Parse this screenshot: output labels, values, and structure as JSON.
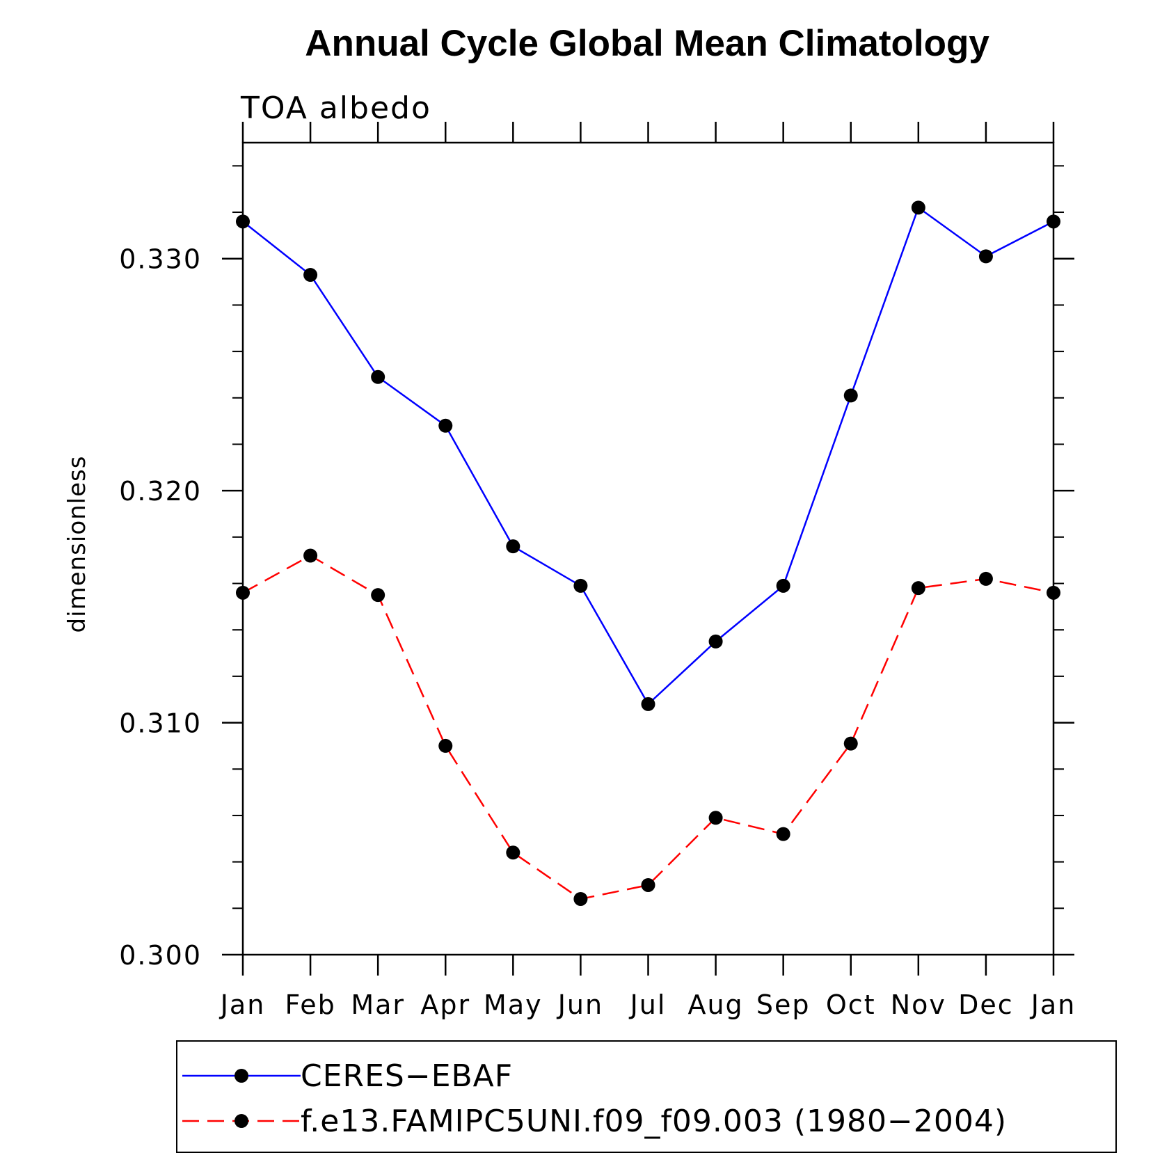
{
  "chart_data": {
    "type": "line",
    "title": "Annual Cycle Global Mean Climatology",
    "subtitle": "TOA  albedo",
    "xlabel": "",
    "ylabel": "dimensionless",
    "categories": [
      "Jan",
      "Feb",
      "Mar",
      "Apr",
      "May",
      "Jun",
      "Jul",
      "Aug",
      "Sep",
      "Oct",
      "Nov",
      "Dec",
      "Jan"
    ],
    "ylim": [
      0.3,
      0.335
    ],
    "yticks": [
      "0.300",
      "0.310",
      "0.320",
      "0.330"
    ],
    "ytick_values": [
      0.3,
      0.31,
      0.32,
      0.33
    ],
    "grid": false,
    "legend_position": "bottom",
    "series": [
      {
        "name": "CERES−EBAF",
        "color": "#0000ff",
        "dash": "solid",
        "values": [
          0.3316,
          0.3293,
          0.3249,
          0.3228,
          0.3176,
          0.3159,
          0.3108,
          0.3135,
          0.3159,
          0.3241,
          0.3322,
          0.3301,
          0.3316
        ]
      },
      {
        "name": "f.e13.FAMIPC5UNI.f09_f09.003 (1980−2004)",
        "color": "#ff0000",
        "dash": "dashed",
        "values": [
          0.3156,
          0.3172,
          0.3155,
          0.309,
          0.3044,
          0.3024,
          0.303,
          0.3059,
          0.3052,
          0.3091,
          0.3158,
          0.3162,
          0.3156
        ]
      }
    ]
  }
}
